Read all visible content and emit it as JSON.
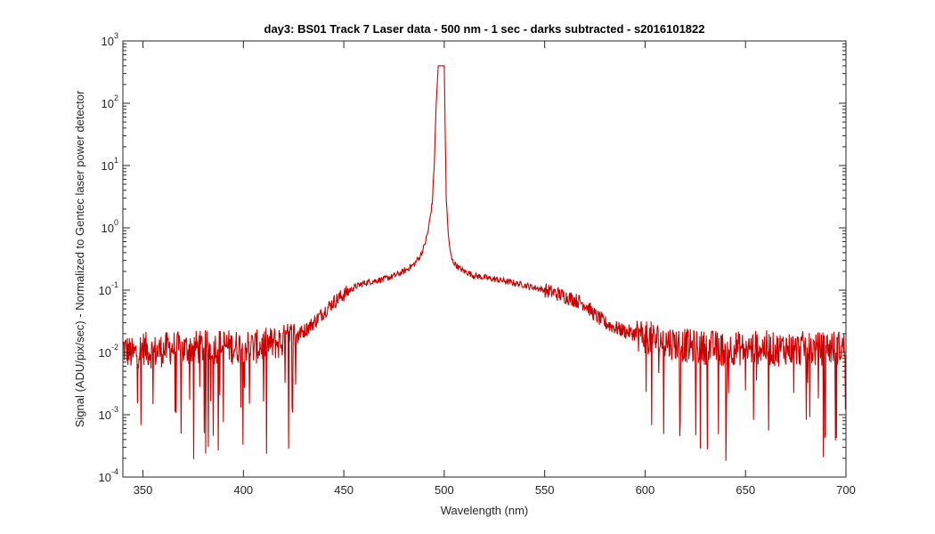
{
  "chart_data": {
    "type": "line",
    "title": "day3: BS01  Track 7 Laser data - 500 nm - 1 sec - darks subtracted - s2016101822",
    "xlabel": "Wavelength (nm)",
    "ylabel": "Signal (ADU/pix/sec) - Normalized to Gentec laser power detector",
    "xlim": [
      340,
      700
    ],
    "ylim": [
      0.0001,
      1000
    ],
    "yscale": "log",
    "grid": false,
    "xticks": [
      350,
      400,
      450,
      500,
      550,
      600,
      650,
      700
    ],
    "xtick_labels": [
      "350",
      "400",
      "450",
      "500",
      "550",
      "600",
      "650",
      "700"
    ],
    "yticks": [
      0.0001,
      0.001,
      0.01,
      0.1,
      1,
      10,
      100,
      1000
    ],
    "ytick_labels": [
      {
        "base": "10",
        "exp": "-4"
      },
      {
        "base": "10",
        "exp": "-3"
      },
      {
        "base": "10",
        "exp": "-2"
      },
      {
        "base": "10",
        "exp": "-1"
      },
      {
        "base": "10",
        "exp": "0"
      },
      {
        "base": "10",
        "exp": "1"
      },
      {
        "base": "10",
        "exp": "2"
      },
      {
        "base": "10",
        "exp": "3"
      }
    ],
    "series": [
      {
        "color": "#cc0000",
        "x": [
          340,
          345,
          350,
          355,
          360,
          365,
          370,
          375,
          380,
          385,
          390,
          395,
          400,
          405,
          410,
          415,
          420,
          425,
          430,
          435,
          440,
          445,
          450,
          455,
          460,
          465,
          470,
          475,
          480,
          485,
          488,
          490,
          492,
          494,
          495,
          496,
          497,
          498,
          499,
          500,
          500.5,
          501,
          502,
          503,
          504,
          506,
          508,
          510,
          512,
          515,
          520,
          525,
          530,
          535,
          540,
          545,
          550,
          555,
          560,
          565,
          570,
          575,
          580,
          585,
          590,
          595,
          600,
          605,
          610,
          615,
          620,
          625,
          630,
          635,
          640,
          645,
          650,
          655,
          660,
          665,
          670,
          675,
          680,
          685,
          690,
          695,
          700
        ],
        "y": [
          0.012,
          0.009,
          0.012,
          0.01,
          0.011,
          0.012,
          0.011,
          0.012,
          0.012,
          0.012,
          0.013,
          0.012,
          0.013,
          0.012,
          0.013,
          0.014,
          0.015,
          0.018,
          0.022,
          0.03,
          0.045,
          0.065,
          0.085,
          0.11,
          0.13,
          0.14,
          0.15,
          0.17,
          0.2,
          0.26,
          0.35,
          0.5,
          0.9,
          2.5,
          10,
          100,
          400,
          400,
          400,
          400,
          30,
          3,
          0.8,
          0.4,
          0.3,
          0.25,
          0.22,
          0.2,
          0.19,
          0.17,
          0.16,
          0.15,
          0.14,
          0.13,
          0.12,
          0.11,
          0.1,
          0.09,
          0.08,
          0.07,
          0.06,
          0.04,
          0.03,
          0.025,
          0.022,
          0.02,
          0.018,
          0.016,
          0.015,
          0.014,
          0.013,
          0.012,
          0.012,
          0.012,
          0.011,
          0.012,
          0.011,
          0.012,
          0.012,
          0.011,
          0.012,
          0.011,
          0.012,
          0.011,
          0.012,
          0.012,
          0.012
        ]
      }
    ]
  }
}
